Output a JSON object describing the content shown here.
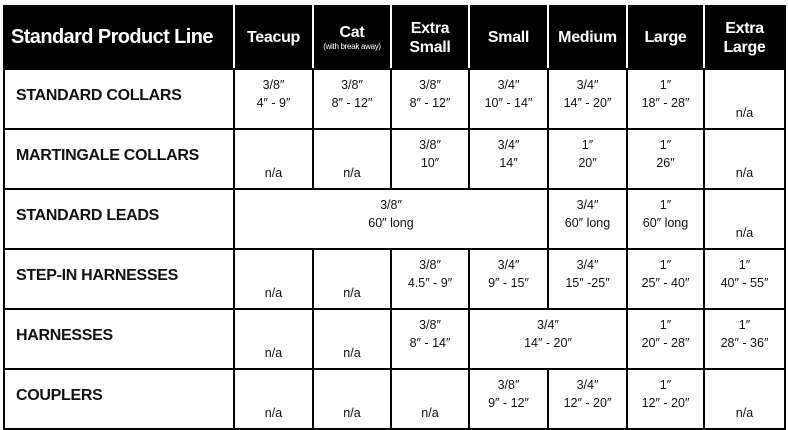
{
  "title": "Standard Product Line",
  "columns": [
    {
      "label": "Teacup"
    },
    {
      "label": "Cat",
      "sub": "(with break away)"
    },
    {
      "label": "Extra Small"
    },
    {
      "label": "Small"
    },
    {
      "label": "Medium"
    },
    {
      "label": "Large"
    },
    {
      "label": "Extra Large"
    }
  ],
  "rows": [
    {
      "name": "STANDARD COLLARS",
      "cells": [
        {
          "w": "3/8″",
          "r": "4″ - 9″"
        },
        {
          "w": "3/8″",
          "r": "8″ - 12″"
        },
        {
          "w": "3/8″",
          "r": "8″ - 12″"
        },
        {
          "w": "3/4″",
          "r": "10″ - 14″"
        },
        {
          "w": "3/4″",
          "r": "14″ - 20″"
        },
        {
          "w": "1″",
          "r": "18″ - 28″"
        },
        {
          "na": "n/a"
        }
      ]
    },
    {
      "name": "MARTINGALE COLLARS",
      "cells": [
        {
          "na": "n/a"
        },
        {
          "na": "n/a"
        },
        {
          "w": "3/8″",
          "r": "10″"
        },
        {
          "w": "3/4″",
          "r": "14″"
        },
        {
          "w": "1″",
          "r": "20″"
        },
        {
          "w": "1″",
          "r": "26″"
        },
        {
          "na": "n/a"
        }
      ]
    },
    {
      "name": "STANDARD LEADS",
      "cells": [
        {
          "w": "3/8″",
          "r": "60″ long",
          "span": 4
        },
        {
          "w": "3/4″",
          "r": "60″ long"
        },
        {
          "w": "1″",
          "r": "60″ long"
        },
        {
          "na": "n/a"
        }
      ]
    },
    {
      "name": "STEP-IN HARNESSES",
      "cells": [
        {
          "na": "n/a"
        },
        {
          "na": "n/a"
        },
        {
          "w": "3/8″",
          "r": "4.5″ - 9″"
        },
        {
          "w": "3/4″",
          "r": "9″ - 15″"
        },
        {
          "w": "3/4″",
          "r": "15″ -25″"
        },
        {
          "w": "1″",
          "r": "25″ - 40″"
        },
        {
          "w": "1″",
          "r": "40″ - 55″"
        }
      ]
    },
    {
      "name": "HARNESSES",
      "cells": [
        {
          "na": "n/a"
        },
        {
          "na": "n/a"
        },
        {
          "w": "3/8″",
          "r": "8″ - 14″"
        },
        {
          "w": "3/4″",
          "r": "14″ - 20″",
          "span": 2
        },
        {
          "w": "1″",
          "r": "20″ - 28″"
        },
        {
          "w": "1″",
          "r": "28″ - 36″"
        }
      ]
    },
    {
      "name": "COUPLERS",
      "cells": [
        {
          "na": "n/a"
        },
        {
          "na": "n/a"
        },
        {
          "na": "n/a"
        },
        {
          "w": "3/8″",
          "r": "9″ - 12″"
        },
        {
          "w": "3/4″",
          "r": "12″ - 20″"
        },
        {
          "w": "1″",
          "r": "12″ - 20″"
        },
        {
          "na": "n/a"
        }
      ]
    }
  ]
}
